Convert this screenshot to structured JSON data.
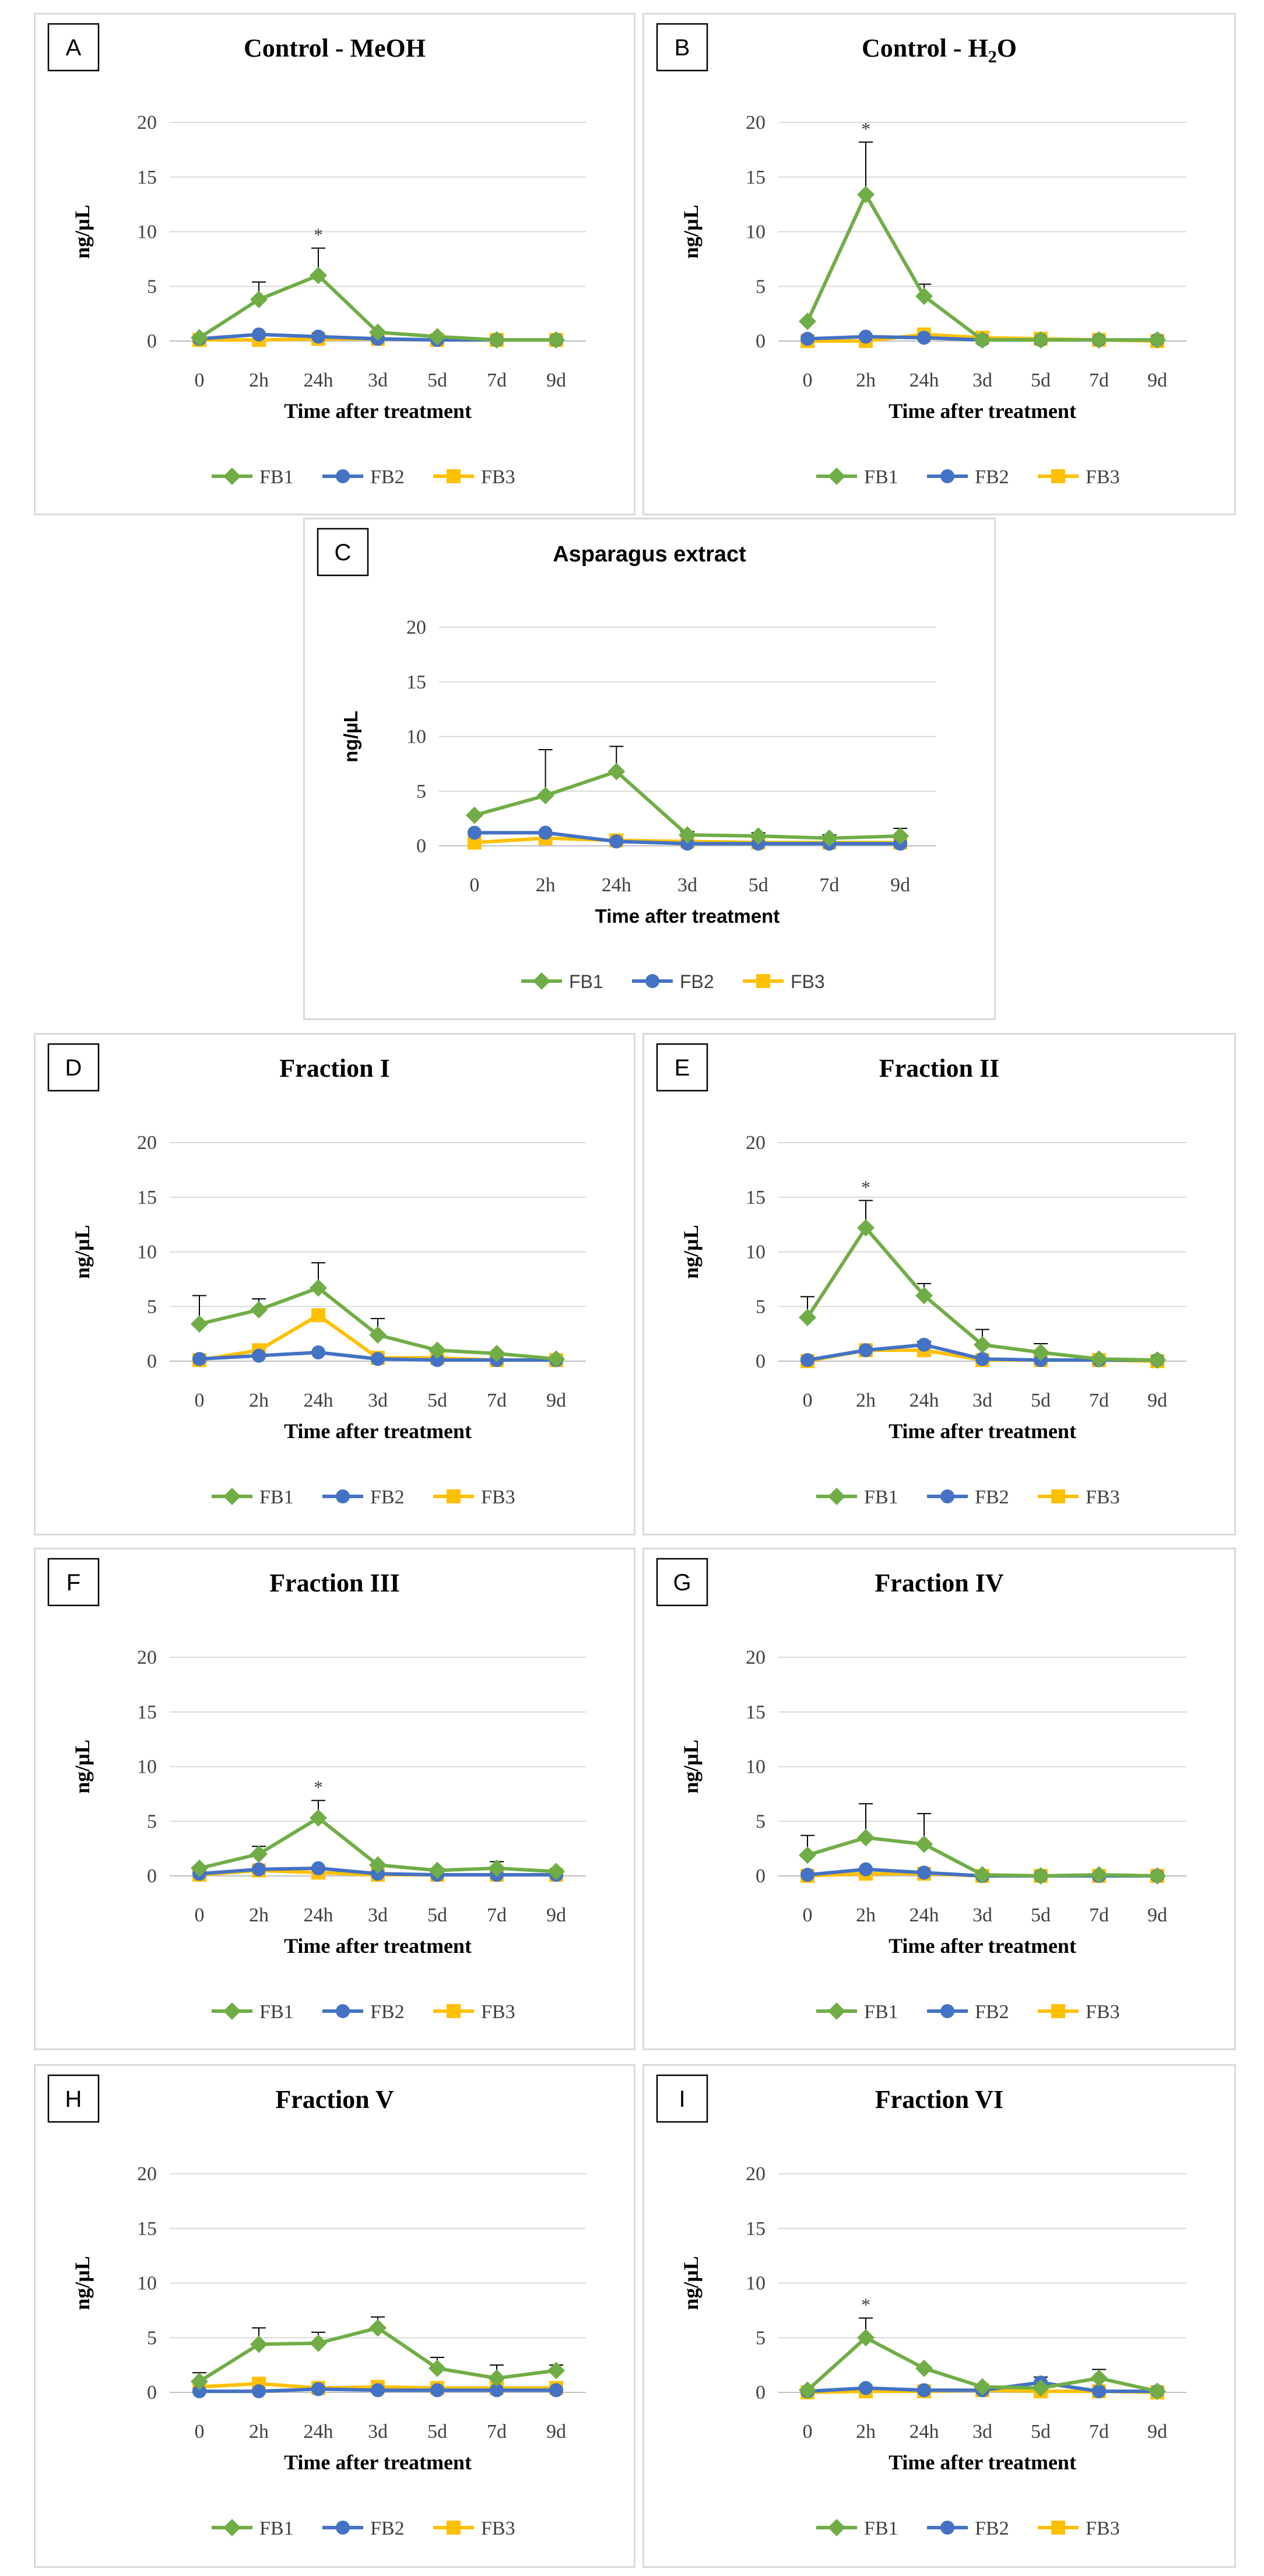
{
  "chart_data": [
    {
      "panel": "A",
      "type": "line",
      "title": "Control - MeOH",
      "title_sub": "",
      "title_tail": "",
      "xlabel": "Time after treatment",
      "ylabel": "ng/µL",
      "categories": [
        "0",
        "2h",
        "24h",
        "3d",
        "5d",
        "7d",
        "9d"
      ],
      "ylim": [
        0,
        20
      ],
      "yticks": [
        0,
        5,
        10,
        15,
        20
      ],
      "grid": true,
      "legend": "bottom",
      "series": [
        {
          "name": "FB1",
          "color": "#70ad47",
          "marker": "diamond",
          "values": [
            0.3,
            3.8,
            6.0,
            0.8,
            0.4,
            0.1,
            0.1
          ],
          "errors": [
            0,
            1.6,
            2.5,
            0,
            0,
            0,
            0
          ]
        },
        {
          "name": "FB2",
          "color": "#4472c4",
          "marker": "circle",
          "values": [
            0.2,
            0.6,
            0.4,
            0.2,
            0.1,
            0.1,
            0.1
          ],
          "errors": [
            0,
            0,
            0,
            0,
            0,
            0,
            0
          ]
        },
        {
          "name": "FB3",
          "color": "#ffc000",
          "marker": "square",
          "values": [
            0.1,
            0.1,
            0.2,
            0.2,
            0.1,
            0.1,
            0.1
          ],
          "errors": [
            0,
            0,
            0,
            0,
            0,
            0,
            0
          ]
        }
      ],
      "annotations": [
        {
          "category": "24h",
          "text": "*"
        }
      ]
    },
    {
      "panel": "B",
      "type": "line",
      "title": "Control - H",
      "title_sub": "2",
      "title_tail": "O",
      "xlabel": "Time after treatment",
      "ylabel": "ng/µL",
      "categories": [
        "0",
        "2h",
        "24h",
        "3d",
        "5d",
        "7d",
        "9d"
      ],
      "ylim": [
        0,
        20
      ],
      "yticks": [
        0,
        5,
        10,
        15,
        20
      ],
      "grid": true,
      "legend": "bottom",
      "series": [
        {
          "name": "FB1",
          "color": "#70ad47",
          "marker": "diamond",
          "values": [
            1.8,
            13.4,
            4.1,
            0.1,
            0.1,
            0.1,
            0.1
          ],
          "errors": [
            0,
            4.8,
            1.1,
            0,
            0,
            0,
            0
          ]
        },
        {
          "name": "FB2",
          "color": "#4472c4",
          "marker": "circle",
          "values": [
            0.2,
            0.4,
            0.3,
            0.1,
            0.1,
            0.1,
            0.1
          ],
          "errors": [
            0,
            0,
            0,
            0,
            0,
            0,
            0
          ]
        },
        {
          "name": "FB3",
          "color": "#ffc000",
          "marker": "square",
          "values": [
            0.0,
            0.0,
            0.6,
            0.3,
            0.2,
            0.1,
            0.0
          ],
          "errors": [
            0,
            0,
            0,
            0,
            0,
            0,
            0
          ]
        }
      ],
      "annotations": [
        {
          "category": "2h",
          "text": "*"
        }
      ]
    },
    {
      "panel": "C",
      "type": "line",
      "title": "Asparagus extract",
      "title_sub": "",
      "title_tail": "",
      "xlabel": "Time after treatment",
      "ylabel": "ng/µL",
      "categories": [
        "0",
        "2h",
        "24h",
        "3d",
        "5d",
        "7d",
        "9d"
      ],
      "ylim": [
        0,
        20
      ],
      "yticks": [
        0,
        5,
        10,
        15,
        20
      ],
      "grid": true,
      "legend": "bottom",
      "series": [
        {
          "name": "FB1",
          "color": "#70ad47",
          "marker": "diamond",
          "values": [
            2.8,
            4.6,
            6.8,
            1.0,
            0.9,
            0.7,
            0.9
          ],
          "errors": [
            0,
            4.2,
            2.3,
            0.3,
            0.3,
            0.3,
            0.7
          ]
        },
        {
          "name": "FB2",
          "color": "#4472c4",
          "marker": "circle",
          "values": [
            1.2,
            1.2,
            0.4,
            0.2,
            0.2,
            0.2,
            0.2
          ],
          "errors": [
            0,
            0,
            0,
            0,
            0,
            0,
            0
          ]
        },
        {
          "name": "FB3",
          "color": "#ffc000",
          "marker": "square",
          "values": [
            0.3,
            0.7,
            0.5,
            0.4,
            0.3,
            0.3,
            0.3
          ],
          "errors": [
            0,
            0,
            0,
            0,
            0,
            0,
            0
          ]
        }
      ],
      "annotations": []
    },
    {
      "panel": "D",
      "type": "line",
      "title": "Fraction I",
      "title_sub": "",
      "title_tail": "",
      "xlabel": "Time after treatment",
      "ylabel": "ng/µL",
      "categories": [
        "0",
        "2h",
        "24h",
        "3d",
        "5d",
        "7d",
        "9d"
      ],
      "ylim": [
        0,
        20
      ],
      "yticks": [
        0,
        5,
        10,
        15,
        20
      ],
      "grid": true,
      "legend": "bottom",
      "series": [
        {
          "name": "FB1",
          "color": "#70ad47",
          "marker": "diamond",
          "values": [
            3.4,
            4.7,
            6.7,
            2.4,
            1.0,
            0.7,
            0.2
          ],
          "errors": [
            2.6,
            1.0,
            2.3,
            1.5,
            0,
            0,
            0
          ]
        },
        {
          "name": "FB2",
          "color": "#4472c4",
          "marker": "circle",
          "values": [
            0.2,
            0.5,
            0.8,
            0.2,
            0.1,
            0.1,
            0.1
          ],
          "errors": [
            0,
            0,
            0,
            0,
            0,
            0,
            0
          ]
        },
        {
          "name": "FB3",
          "color": "#ffc000",
          "marker": "square",
          "values": [
            0.1,
            1.0,
            4.2,
            0.3,
            0.3,
            0.1,
            0.1
          ],
          "errors": [
            0,
            0,
            0,
            0,
            0,
            0,
            0
          ]
        }
      ],
      "annotations": []
    },
    {
      "panel": "E",
      "type": "line",
      "title": "Fraction II",
      "title_sub": "",
      "title_tail": "",
      "xlabel": "Time after treatment",
      "ylabel": "ng/µL",
      "categories": [
        "0",
        "2h",
        "24h",
        "3d",
        "5d",
        "7d",
        "9d"
      ],
      "ylim": [
        0,
        20
      ],
      "yticks": [
        0,
        5,
        10,
        15,
        20
      ],
      "grid": true,
      "legend": "bottom",
      "series": [
        {
          "name": "FB1",
          "color": "#70ad47",
          "marker": "diamond",
          "values": [
            4.0,
            12.2,
            6.0,
            1.5,
            0.8,
            0.2,
            0.1
          ],
          "errors": [
            1.9,
            2.5,
            1.1,
            1.4,
            0.8,
            0,
            0
          ]
        },
        {
          "name": "FB2",
          "color": "#4472c4",
          "marker": "circle",
          "values": [
            0.1,
            1.0,
            1.5,
            0.2,
            0.1,
            0.1,
            0.1
          ],
          "errors": [
            0,
            0,
            0.3,
            0,
            0,
            0,
            0
          ]
        },
        {
          "name": "FB3",
          "color": "#ffc000",
          "marker": "square",
          "values": [
            0.0,
            1.0,
            1.0,
            0.1,
            0.1,
            0.1,
            0.0
          ],
          "errors": [
            0,
            0,
            0,
            0,
            0,
            0,
            0
          ]
        }
      ],
      "annotations": [
        {
          "category": "2h",
          "text": "*"
        }
      ]
    },
    {
      "panel": "F",
      "type": "line",
      "title": "Fraction III",
      "title_sub": "",
      "title_tail": "",
      "xlabel": "Time after treatment",
      "ylabel": "ng/µL",
      "categories": [
        "0",
        "2h",
        "24h",
        "3d",
        "5d",
        "7d",
        "9d"
      ],
      "ylim": [
        0,
        20
      ],
      "yticks": [
        0,
        5,
        10,
        15,
        20
      ],
      "grid": true,
      "legend": "bottom",
      "series": [
        {
          "name": "FB1",
          "color": "#70ad47",
          "marker": "diamond",
          "values": [
            0.7,
            2.0,
            5.3,
            1.0,
            0.5,
            0.7,
            0.4
          ],
          "errors": [
            0,
            0.7,
            1.6,
            0,
            0,
            0.6,
            0
          ]
        },
        {
          "name": "FB2",
          "color": "#4472c4",
          "marker": "circle",
          "values": [
            0.2,
            0.6,
            0.7,
            0.2,
            0.1,
            0.1,
            0.1
          ],
          "errors": [
            0,
            0,
            0,
            0,
            0,
            0,
            0
          ]
        },
        {
          "name": "FB3",
          "color": "#ffc000",
          "marker": "square",
          "values": [
            0.1,
            0.5,
            0.3,
            0.1,
            0.1,
            0.1,
            0.1
          ],
          "errors": [
            0,
            0,
            0,
            0,
            0,
            0,
            0
          ]
        }
      ],
      "annotations": [
        {
          "category": "24h",
          "text": "*"
        }
      ]
    },
    {
      "panel": "G",
      "type": "line",
      "title": "Fraction IV",
      "title_sub": "",
      "title_tail": "",
      "xlabel": "Time after treatment",
      "ylabel": "ng/µL",
      "categories": [
        "0",
        "2h",
        "24h",
        "3d",
        "5d",
        "7d",
        "9d"
      ],
      "ylim": [
        0,
        20
      ],
      "yticks": [
        0,
        5,
        10,
        15,
        20
      ],
      "grid": true,
      "legend": "bottom",
      "series": [
        {
          "name": "FB1",
          "color": "#70ad47",
          "marker": "diamond",
          "values": [
            1.9,
            3.5,
            2.9,
            0.1,
            0.0,
            0.1,
            0.0
          ],
          "errors": [
            1.8,
            3.1,
            2.8,
            0,
            0,
            0,
            0
          ]
        },
        {
          "name": "FB2",
          "color": "#4472c4",
          "marker": "circle",
          "values": [
            0.1,
            0.6,
            0.3,
            0.0,
            0.0,
            0.0,
            0.0
          ],
          "errors": [
            0,
            0,
            0,
            0,
            0,
            0,
            0
          ]
        },
        {
          "name": "FB3",
          "color": "#ffc000",
          "marker": "square",
          "values": [
            0.0,
            0.2,
            0.2,
            0.0,
            0.0,
            0.0,
            0.0
          ],
          "errors": [
            0,
            0,
            0,
            0,
            0,
            0,
            0
          ]
        }
      ],
      "annotations": []
    },
    {
      "panel": "H",
      "type": "line",
      "title": "Fraction V",
      "title_sub": "",
      "title_tail": "",
      "xlabel": "Time after treatment",
      "ylabel": "ng/µL",
      "categories": [
        "0",
        "2h",
        "24h",
        "3d",
        "5d",
        "7d",
        "9d"
      ],
      "ylim": [
        0,
        20
      ],
      "yticks": [
        0,
        5,
        10,
        15,
        20
      ],
      "grid": true,
      "legend": "bottom",
      "series": [
        {
          "name": "FB1",
          "color": "#70ad47",
          "marker": "diamond",
          "values": [
            1.0,
            4.4,
            4.5,
            5.9,
            2.2,
            1.3,
            2.0
          ],
          "errors": [
            0.8,
            1.5,
            1.0,
            1.0,
            1.0,
            1.2,
            0.5
          ]
        },
        {
          "name": "FB2",
          "color": "#4472c4",
          "marker": "circle",
          "values": [
            0.1,
            0.1,
            0.3,
            0.2,
            0.2,
            0.2,
            0.2
          ],
          "errors": [
            0,
            0,
            0,
            0,
            0,
            0,
            0
          ]
        },
        {
          "name": "FB3",
          "color": "#ffc000",
          "marker": "square",
          "values": [
            0.5,
            0.8,
            0.4,
            0.5,
            0.4,
            0.4,
            0.4
          ],
          "errors": [
            0,
            0,
            0,
            0,
            0,
            0,
            0
          ]
        }
      ],
      "annotations": []
    },
    {
      "panel": "I",
      "type": "line",
      "title": "Fraction VI",
      "title_sub": "",
      "title_tail": "",
      "xlabel": "Time after treatment",
      "ylabel": "ng/µL",
      "categories": [
        "0",
        "2h",
        "24h",
        "3d",
        "5d",
        "7d",
        "9d"
      ],
      "ylim": [
        0,
        20
      ],
      "yticks": [
        0,
        5,
        10,
        15,
        20
      ],
      "grid": true,
      "legend": "bottom",
      "series": [
        {
          "name": "FB1",
          "color": "#70ad47",
          "marker": "diamond",
          "values": [
            0.2,
            5.0,
            2.2,
            0.5,
            0.4,
            1.3,
            0.1
          ],
          "errors": [
            0,
            1.8,
            0,
            0,
            0,
            0.8,
            0
          ]
        },
        {
          "name": "FB2",
          "color": "#4472c4",
          "marker": "circle",
          "values": [
            0.1,
            0.4,
            0.2,
            0.2,
            0.9,
            0.1,
            0.1
          ],
          "errors": [
            0,
            0,
            0,
            0,
            0.5,
            0,
            0
          ]
        },
        {
          "name": "FB3",
          "color": "#ffc000",
          "marker": "square",
          "values": [
            0.0,
            0.1,
            0.1,
            0.2,
            0.1,
            0.1,
            0.0
          ],
          "errors": [
            0,
            0,
            0,
            0,
            0,
            0,
            0
          ]
        }
      ],
      "annotations": [
        {
          "category": "2h",
          "text": "*"
        }
      ]
    }
  ]
}
